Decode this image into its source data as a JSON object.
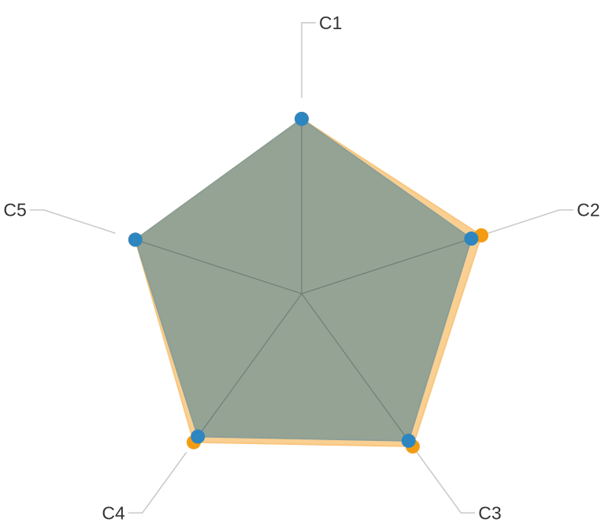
{
  "chart_data": {
    "type": "radar",
    "categories": [
      "C1",
      "C2",
      "C3",
      "C4",
      "C5"
    ],
    "max": 100,
    "grid_levels": 5,
    "grid": true,
    "legend": "none",
    "series": [
      {
        "values": [
          100,
          108,
          108,
          105,
          100
        ],
        "color": "#f5a623",
        "fill": "#f8c77f",
        "marker": "#f39c12"
      },
      {
        "values": [
          100,
          102,
          104,
          101,
          100
        ],
        "color": "#2e86c1",
        "fill": "#8c9f96",
        "marker": "#2e86c1"
      }
    ]
  }
}
